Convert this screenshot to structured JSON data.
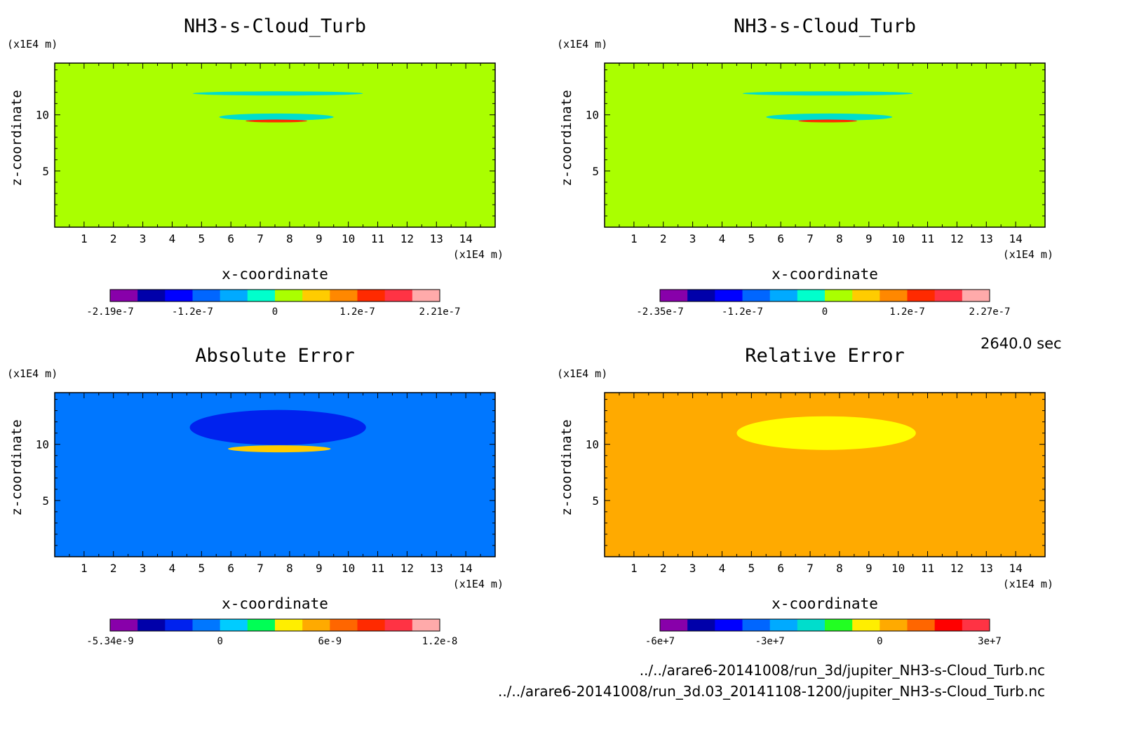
{
  "timestamp": "2640.0 sec",
  "files": [
    "../../arare6-20141008/run_3d/jupiter_NH3-s-Cloud_Turb.nc",
    "../../arare6-20141008/run_3d.03_20141108-1200/jupiter_NH3-s-Cloud_Turb.nc"
  ],
  "chart_data": [
    {
      "type": "heatmap",
      "title": "NH3-s-Cloud_Turb",
      "xlabel": "x-coordinate",
      "ylabel": "z-coordinate",
      "x_unit": "(x1E4 m)",
      "y_unit": "(x1E4 m)",
      "xlim": [
        0,
        15
      ],
      "ylim": [
        0,
        14.6
      ],
      "xticks": [
        1,
        2,
        3,
        4,
        5,
        6,
        7,
        8,
        9,
        10,
        11,
        12,
        13,
        14
      ],
      "yticks": [
        5,
        10
      ],
      "background_color": "#aaff00",
      "regions": [
        {
          "xmin": 4.7,
          "xmax": 10.5,
          "z": 11.9,
          "color": "#00ddcc"
        },
        {
          "xmin": 5.6,
          "xmax": 9.5,
          "z": 9.8,
          "color": "#00ddcc"
        },
        {
          "xmin": 6.5,
          "xmax": 8.6,
          "z": 9.45,
          "color": "#ff2a00"
        }
      ],
      "colorbar": {
        "colors": [
          "#8800aa",
          "#0000aa",
          "#0000ff",
          "#0066ff",
          "#00aaff",
          "#00ffcc",
          "#aaff00",
          "#ffcc00",
          "#ff8800",
          "#ff2a00",
          "#ff3344",
          "#ffaaaa"
        ],
        "tick_labels": [
          "-2.19e-7",
          "-1.2e-7",
          "0",
          "1.2e-7",
          "2.21e-7"
        ]
      }
    },
    {
      "type": "heatmap",
      "title": "NH3-s-Cloud_Turb",
      "xlabel": "x-coordinate",
      "ylabel": "z-coordinate",
      "x_unit": "(x1E4 m)",
      "y_unit": "(x1E4 m)",
      "xlim": [
        0,
        15
      ],
      "ylim": [
        0,
        14.6
      ],
      "xticks": [
        1,
        2,
        3,
        4,
        5,
        6,
        7,
        8,
        9,
        10,
        11,
        12,
        13,
        14
      ],
      "yticks": [
        5,
        10
      ],
      "background_color": "#aaff00",
      "regions": [
        {
          "xmin": 4.7,
          "xmax": 10.5,
          "z": 11.9,
          "color": "#00ddcc"
        },
        {
          "xmin": 5.5,
          "xmax": 9.8,
          "z": 9.8,
          "color": "#00ddcc"
        },
        {
          "xmin": 6.6,
          "xmax": 8.6,
          "z": 9.45,
          "color": "#ff2a00"
        }
      ],
      "colorbar": {
        "colors": [
          "#8800aa",
          "#0000aa",
          "#0000ff",
          "#0066ff",
          "#00aaff",
          "#00ffcc",
          "#aaff00",
          "#ffcc00",
          "#ff8800",
          "#ff2a00",
          "#ff3344",
          "#ffaaaa"
        ],
        "tick_labels": [
          "-2.35e-7",
          "-1.2e-7",
          "0",
          "1.2e-7",
          "2.27e-7"
        ]
      }
    },
    {
      "type": "heatmap",
      "title": "Absolute Error",
      "xlabel": "x-coordinate",
      "ylabel": "z-coordinate",
      "x_unit": "(x1E4 m)",
      "y_unit": "(x1E4 m)",
      "xlim": [
        0,
        15
      ],
      "ylim": [
        0,
        14.6
      ],
      "xticks": [
        1,
        2,
        3,
        4,
        5,
        6,
        7,
        8,
        9,
        10,
        11,
        12,
        13,
        14
      ],
      "yticks": [
        5,
        10
      ],
      "background_color": "#0077ff",
      "regions": [
        {
          "xmin": 4.6,
          "xmax": 10.6,
          "z": 11.5,
          "color": "#0022ee"
        },
        {
          "xmin": 5.9,
          "xmax": 9.4,
          "z": 9.6,
          "color": "#ffcc00"
        }
      ],
      "colorbar": {
        "colors": [
          "#8800aa",
          "#0000aa",
          "#0022ee",
          "#0077ff",
          "#00ccff",
          "#00ff55",
          "#ffee00",
          "#ffaa00",
          "#ff6600",
          "#ff2a00",
          "#ff3344",
          "#ffaaaa"
        ],
        "tick_labels": [
          "-5.34e-9",
          "0",
          "6e-9",
          "1.2e-8"
        ]
      }
    },
    {
      "type": "heatmap",
      "title": "Relative Error",
      "xlabel": "x-coordinate",
      "ylabel": "z-coordinate",
      "x_unit": "(x1E4 m)",
      "y_unit": "(x1E4 m)",
      "xlim": [
        0,
        15
      ],
      "ylim": [
        0,
        14.6
      ],
      "xticks": [
        1,
        2,
        3,
        4,
        5,
        6,
        7,
        8,
        9,
        10,
        11,
        12,
        13,
        14
      ],
      "yticks": [
        5,
        10
      ],
      "background_color": "#ffaa00",
      "regions": [
        {
          "xmin": 4.5,
          "xmax": 10.6,
          "z": 11.0,
          "color": "#ffff00"
        }
      ],
      "colorbar": {
        "colors": [
          "#8800aa",
          "#0000aa",
          "#0000ff",
          "#0066ff",
          "#00aaff",
          "#00ddcc",
          "#22ff22",
          "#ffee00",
          "#ffaa00",
          "#ff6600",
          "#ff0000",
          "#ff3344"
        ],
        "tick_labels": [
          "-6e+7",
          "-3e+7",
          "0",
          "3e+7"
        ]
      }
    }
  ]
}
